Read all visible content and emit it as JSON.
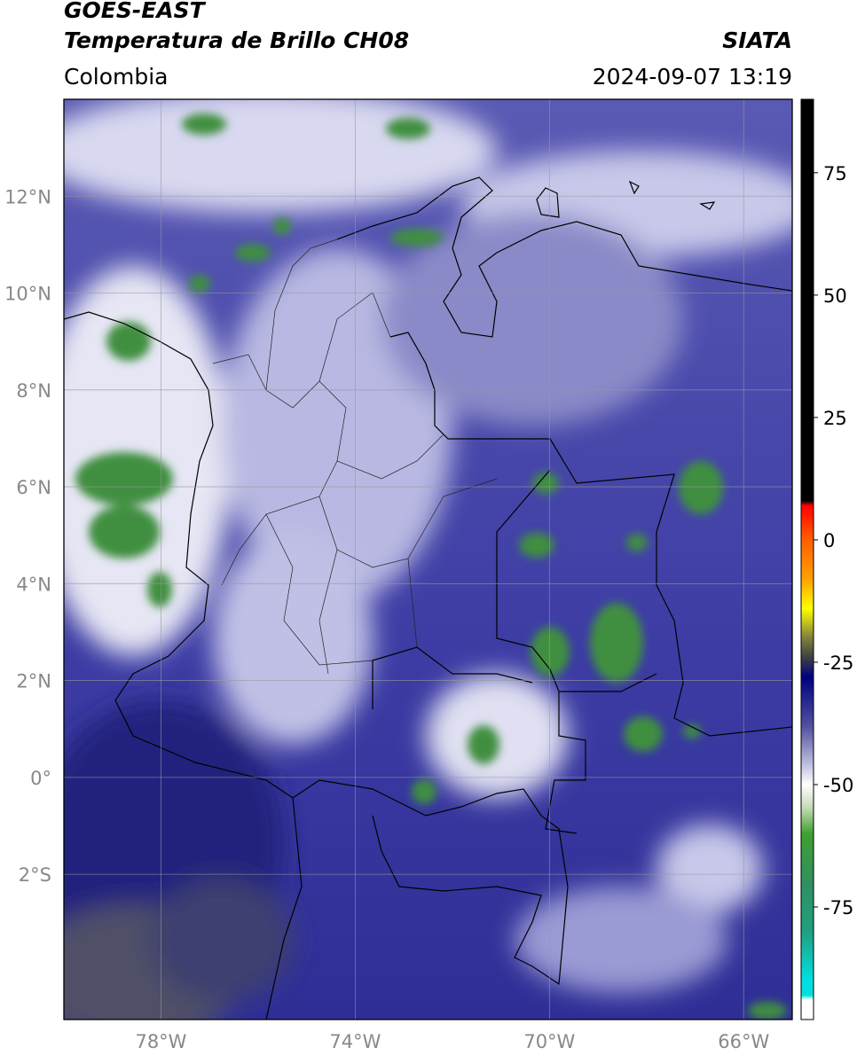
{
  "header": {
    "satellite": "GOES-EAST",
    "product": "Temperatura de Brillo CH08",
    "agency": "SIATA",
    "region": "Colombia",
    "timestamp": "2024-09-07 13:19"
  },
  "map": {
    "xlim": [
      -80,
      -65
    ],
    "ylim": [
      -5,
      14
    ],
    "xticks": [
      {
        "value": -78,
        "label": "78°W"
      },
      {
        "value": -74,
        "label": "74°W"
      },
      {
        "value": -70,
        "label": "70°W"
      },
      {
        "value": -66,
        "label": "66°W"
      }
    ],
    "yticks": [
      {
        "value": 12,
        "label": "12°N"
      },
      {
        "value": 10,
        "label": "10°N"
      },
      {
        "value": 8,
        "label": "8°N"
      },
      {
        "value": 6,
        "label": "6°N"
      },
      {
        "value": 4,
        "label": "4°N"
      },
      {
        "value": 2,
        "label": "2°N"
      },
      {
        "value": 0,
        "label": "0°"
      },
      {
        "value": -2,
        "label": "2°S"
      }
    ],
    "grid": true
  },
  "colorbar": {
    "range": [
      -98,
      90
    ],
    "ticks": [
      75,
      50,
      25,
      0,
      -25,
      -50,
      -75
    ],
    "stops": [
      {
        "value": 90,
        "color": "#000000"
      },
      {
        "value": 8,
        "color": "#000000"
      },
      {
        "value": 7,
        "color": "#ff0000"
      },
      {
        "value": 0,
        "color": "#ff6000"
      },
      {
        "value": -8,
        "color": "#ffa000"
      },
      {
        "value": -14,
        "color": "#ffff00"
      },
      {
        "value": -20,
        "color": "#808040"
      },
      {
        "value": -24,
        "color": "#404040"
      },
      {
        "value": -28,
        "color": "#000080"
      },
      {
        "value": -38,
        "color": "#5050a0"
      },
      {
        "value": -46,
        "color": "#c0c0e0"
      },
      {
        "value": -50,
        "color": "#ffffff"
      },
      {
        "value": -55,
        "color": "#c0d8b0"
      },
      {
        "value": -60,
        "color": "#40a030"
      },
      {
        "value": -70,
        "color": "#309060"
      },
      {
        "value": -80,
        "color": "#20a080"
      },
      {
        "value": -90,
        "color": "#00e0e0"
      },
      {
        "value": -93,
        "color": "#00e0e0"
      },
      {
        "value": -94,
        "color": "#ffffff"
      },
      {
        "value": -98,
        "color": "#ffffff"
      }
    ]
  }
}
